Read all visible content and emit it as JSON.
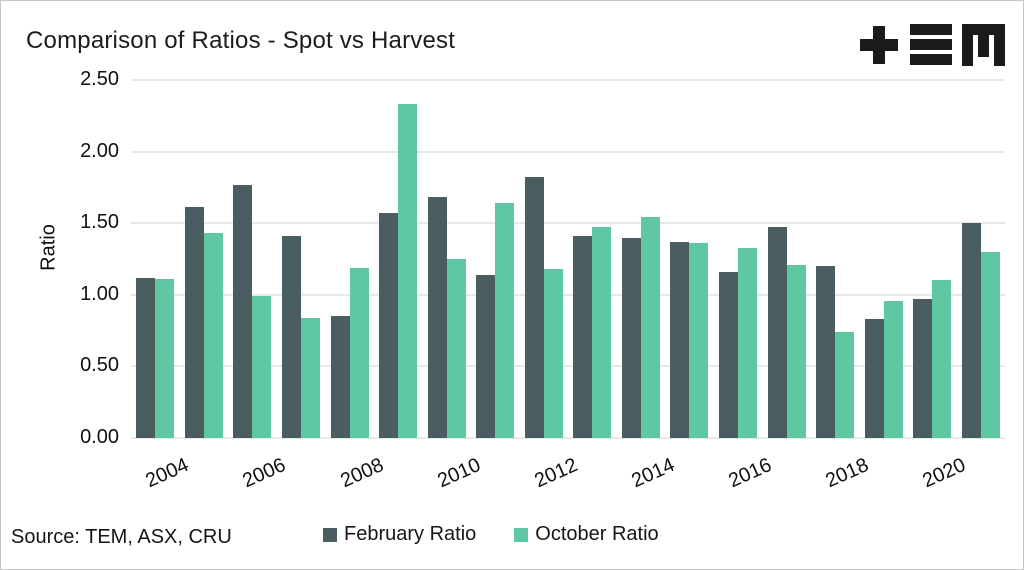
{
  "header": {
    "title": "Comparison of Ratios - Spot vs Harvest",
    "logo": {
      "name": "tem-logo",
      "alt": "TEM"
    }
  },
  "footer": {
    "source": "Source: TEM, ASX, CRU"
  },
  "colors": {
    "february": "#4a5d60",
    "october": "#5fc7a2",
    "gridline": "#e8e8e8",
    "text": "#1a1a1a",
    "logo": "#1a1a1a"
  },
  "chart_data": {
    "type": "bar",
    "title": "Comparison of Ratios - Spot vs Harvest",
    "xlabel": "",
    "ylabel": "Ratio",
    "ylim": [
      0,
      2.5
    ],
    "grid": true,
    "legend_position": "bottom",
    "categories": [
      "2004",
      "2005",
      "2006",
      "2007",
      "2008",
      "2009",
      "2010",
      "2011",
      "2012",
      "2013",
      "2014",
      "2015",
      "2016",
      "2017",
      "2018",
      "2019",
      "2020",
      "2021"
    ],
    "xtick_labels": [
      "2004",
      "2006",
      "2008",
      "2010",
      "2012",
      "2014",
      "2016",
      "2018",
      "2020"
    ],
    "yticks": [
      0,
      0.5,
      1.0,
      1.5,
      2.0,
      2.5
    ],
    "ytick_labels": [
      "0.00",
      "0.50",
      "1.00",
      "1.50",
      "2.00",
      "2.50"
    ],
    "series": [
      {
        "name": "February Ratio",
        "color": "#4a5d60",
        "values": [
          1.12,
          1.61,
          1.77,
          1.41,
          0.85,
          1.57,
          1.68,
          1.14,
          1.82,
          1.41,
          1.4,
          1.37,
          1.16,
          1.47,
          1.2,
          0.83,
          0.97,
          1.5
        ]
      },
      {
        "name": "October Ratio",
        "color": "#5fc7a2",
        "values": [
          1.11,
          1.43,
          0.99,
          0.84,
          1.19,
          2.33,
          1.25,
          1.64,
          1.18,
          1.47,
          1.54,
          1.36,
          1.33,
          1.21,
          0.74,
          0.96,
          1.1,
          1.3
        ]
      }
    ],
    "source": "Source: TEM, ASX, CRU"
  }
}
